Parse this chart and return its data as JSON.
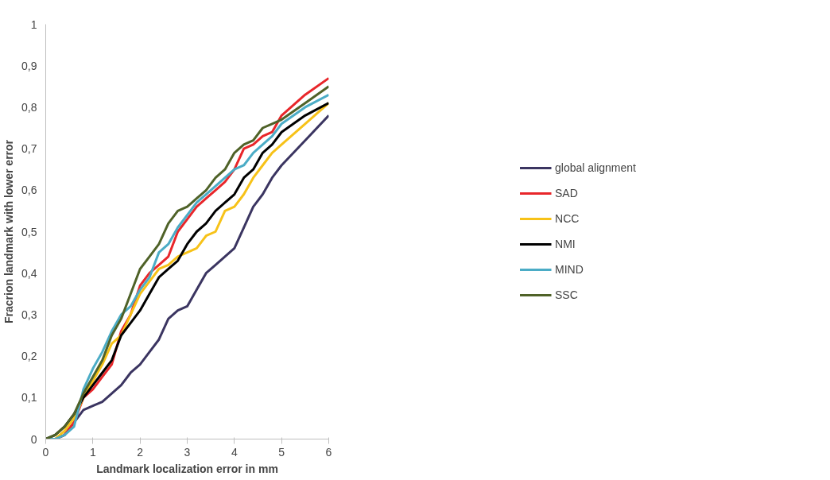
{
  "chart_data": {
    "type": "line",
    "xlabel": "Landmark localization error in mm",
    "ylabel": "Fracrion landmark with lower error",
    "x": [
      0,
      0.2,
      0.4,
      0.6,
      0.8,
      1.0,
      1.2,
      1.4,
      1.6,
      1.8,
      2.0,
      2.2,
      2.4,
      2.6,
      2.8,
      3.0,
      3.2,
      3.4,
      3.6,
      3.8,
      4.0,
      4.2,
      4.4,
      4.6,
      4.8,
      5.0,
      5.5,
      6.0
    ],
    "series": [
      {
        "name": "global alignment",
        "color": "#3b3561",
        "values": [
          0,
          0,
          0.01,
          0.04,
          0.07,
          0.08,
          0.09,
          0.11,
          0.13,
          0.16,
          0.18,
          0.21,
          0.24,
          0.29,
          0.31,
          0.32,
          0.36,
          0.4,
          0.42,
          0.44,
          0.46,
          0.51,
          0.56,
          0.59,
          0.63,
          0.66,
          0.72,
          0.78
        ]
      },
      {
        "name": "SAD",
        "color": "#e8262a",
        "values": [
          0,
          0,
          0.01,
          0.04,
          0.1,
          0.12,
          0.15,
          0.18,
          0.26,
          0.3,
          0.37,
          0.4,
          0.42,
          0.44,
          0.5,
          0.53,
          0.56,
          0.58,
          0.6,
          0.62,
          0.65,
          0.7,
          0.71,
          0.73,
          0.74,
          0.78,
          0.83,
          0.87
        ]
      },
      {
        "name": "NCC",
        "color": "#f7c218",
        "values": [
          0,
          0,
          0.02,
          0.05,
          0.1,
          0.14,
          0.18,
          0.23,
          0.25,
          0.3,
          0.35,
          0.38,
          0.41,
          0.42,
          0.44,
          0.45,
          0.46,
          0.49,
          0.5,
          0.55,
          0.56,
          0.59,
          0.63,
          0.66,
          0.69,
          0.71,
          0.76,
          0.81
        ]
      },
      {
        "name": "NMI",
        "color": "#000000",
        "values": [
          0,
          0.01,
          0.03,
          0.06,
          0.1,
          0.13,
          0.16,
          0.19,
          0.25,
          0.28,
          0.31,
          0.35,
          0.39,
          0.41,
          0.43,
          0.47,
          0.5,
          0.52,
          0.55,
          0.57,
          0.59,
          0.63,
          0.65,
          0.69,
          0.71,
          0.74,
          0.78,
          0.81
        ]
      },
      {
        "name": "MIND",
        "color": "#4bacc6",
        "values": [
          0,
          0,
          0.01,
          0.03,
          0.12,
          0.17,
          0.21,
          0.26,
          0.3,
          0.32,
          0.36,
          0.39,
          0.45,
          0.47,
          0.51,
          0.54,
          0.57,
          0.59,
          0.61,
          0.63,
          0.65,
          0.66,
          0.69,
          0.71,
          0.73,
          0.76,
          0.8,
          0.83
        ]
      },
      {
        "name": "SSC",
        "color": "#4f6228",
        "values": [
          0,
          0.01,
          0.03,
          0.06,
          0.11,
          0.15,
          0.19,
          0.25,
          0.29,
          0.35,
          0.41,
          0.44,
          0.47,
          0.52,
          0.55,
          0.56,
          0.58,
          0.6,
          0.63,
          0.65,
          0.69,
          0.71,
          0.72,
          0.75,
          0.76,
          0.77,
          0.81,
          0.85
        ]
      }
    ],
    "xlim": [
      0,
      6
    ],
    "xticks": [
      0,
      1,
      2,
      3,
      4,
      5,
      6
    ],
    "ylim": [
      0,
      1
    ],
    "yticks": [
      0,
      {
        "value": 0.1,
        "label": "0,1"
      },
      {
        "value": 0.2,
        "label": "0,2"
      },
      {
        "value": 0.3,
        "label": "0,3"
      },
      {
        "value": 0.4,
        "label": "0,4"
      },
      {
        "value": 0.5,
        "label": "0,5"
      },
      {
        "value": 0.6,
        "label": "0,6"
      },
      {
        "value": 0.7,
        "label": "0,7"
      },
      {
        "value": 0.8,
        "label": "0,8"
      },
      {
        "value": 0.9,
        "label": "0,9"
      },
      1
    ],
    "grid": false,
    "legend": "right",
    "marker": "none",
    "line_style": "solid"
  }
}
